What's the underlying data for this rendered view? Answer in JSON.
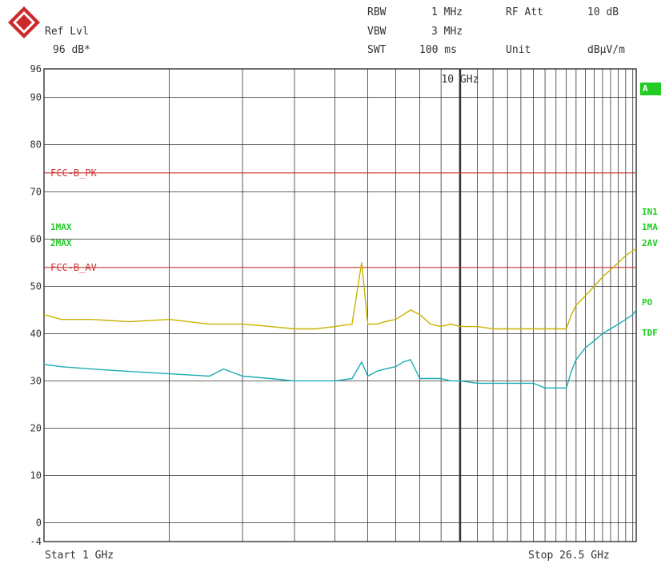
{
  "header": {
    "ref_lvl_label": "Ref Lvl",
    "ref_lvl_value": "96 dB*",
    "rbw_label": "RBW",
    "rbw_value": "1 MHz",
    "vbw_label": "VBW",
    "vbw_value": "3 MHz",
    "swt_label": "SWT",
    "swt_value": "100 ms",
    "rf_att_label": "RF Att",
    "rf_att_value": "10 dB",
    "unit_label": "Unit",
    "unit_value": "dBµV/m"
  },
  "footer": {
    "start": "Start 1 GHz",
    "stop": "Stop 26.5 GHz"
  },
  "side_labels": {
    "a": "A",
    "in1": "IN1",
    "one_ma": "1MA",
    "two_av": "2AV",
    "po": "PO",
    "tdf": "TDF",
    "trace1_left": "1MAX",
    "trace2_left": "2MAX"
  },
  "colors": {
    "grid": "#333333",
    "limit": "#cc3333",
    "trace_max": "#c8b400",
    "trace_avg": "#1aacb4",
    "indicator": "#22cc22"
  },
  "chart_data": {
    "type": "line",
    "x_scale": "log",
    "xlim": [
      1,
      26.5
    ],
    "xunit": "GHz",
    "x_marker_label": "10 GHz",
    "ylim": [
      -4,
      96
    ],
    "y_ticks": [
      "96",
      "90",
      "80",
      "70",
      "60",
      "50",
      "40",
      "30",
      "20",
      "10",
      "0",
      "-4"
    ],
    "limit_lines": [
      {
        "name": "FCC-B_PK",
        "value": 74
      },
      {
        "name": "FCC-B_AV",
        "value": 54
      }
    ],
    "series": [
      {
        "name": "1MAX",
        "x": [
          1.0,
          1.1,
          1.3,
          1.6,
          2.0,
          2.5,
          3.0,
          3.5,
          4.0,
          4.5,
          5.0,
          5.5,
          5.8,
          6.0,
          6.3,
          6.6,
          7.0,
          7.3,
          7.6,
          8.0,
          8.5,
          9.0,
          9.5,
          10.0,
          11.0,
          12.0,
          13.0,
          14.0,
          15.0,
          16.0,
          17.0,
          18.0,
          18.5,
          19.0,
          20.0,
          21.0,
          22.0,
          23.0,
          24.0,
          25.0,
          26.0,
          26.5
        ],
        "y": [
          44,
          43,
          43,
          42.5,
          43,
          42,
          42,
          41.5,
          41,
          41,
          41.5,
          42,
          55,
          42,
          42,
          42.5,
          43,
          44,
          45,
          44,
          42,
          41.5,
          42,
          41.5,
          41.5,
          41,
          41,
          41,
          41,
          41,
          41,
          41,
          44,
          46,
          48,
          50,
          52,
          53.5,
          55,
          56.5,
          57.5,
          58
        ]
      },
      {
        "name": "2MAX",
        "x": [
          1.0,
          1.1,
          1.3,
          1.6,
          2.0,
          2.5,
          2.7,
          3.0,
          3.5,
          4.0,
          4.5,
          5.0,
          5.5,
          5.8,
          6.0,
          6.3,
          6.6,
          7.0,
          7.3,
          7.6,
          8.0,
          8.5,
          9.0,
          9.5,
          10.0,
          11.0,
          12.0,
          13.0,
          14.0,
          15.0,
          16.0,
          17.0,
          18.0,
          18.5,
          19.0,
          20.0,
          21.0,
          22.0,
          23.0,
          24.0,
          25.0,
          26.0,
          26.5
        ],
        "y": [
          33.5,
          33,
          32.5,
          32,
          31.5,
          31,
          32.5,
          31,
          30.5,
          30,
          30,
          30,
          30.5,
          34,
          31,
          32,
          32.5,
          33,
          34,
          34.5,
          30.5,
          30.5,
          30.5,
          30,
          30,
          29.5,
          29.5,
          29.5,
          29.5,
          29.5,
          28.5,
          28.5,
          28.5,
          32,
          34.5,
          37,
          38.5,
          40,
          41,
          42,
          43,
          44,
          45
        ]
      }
    ]
  }
}
